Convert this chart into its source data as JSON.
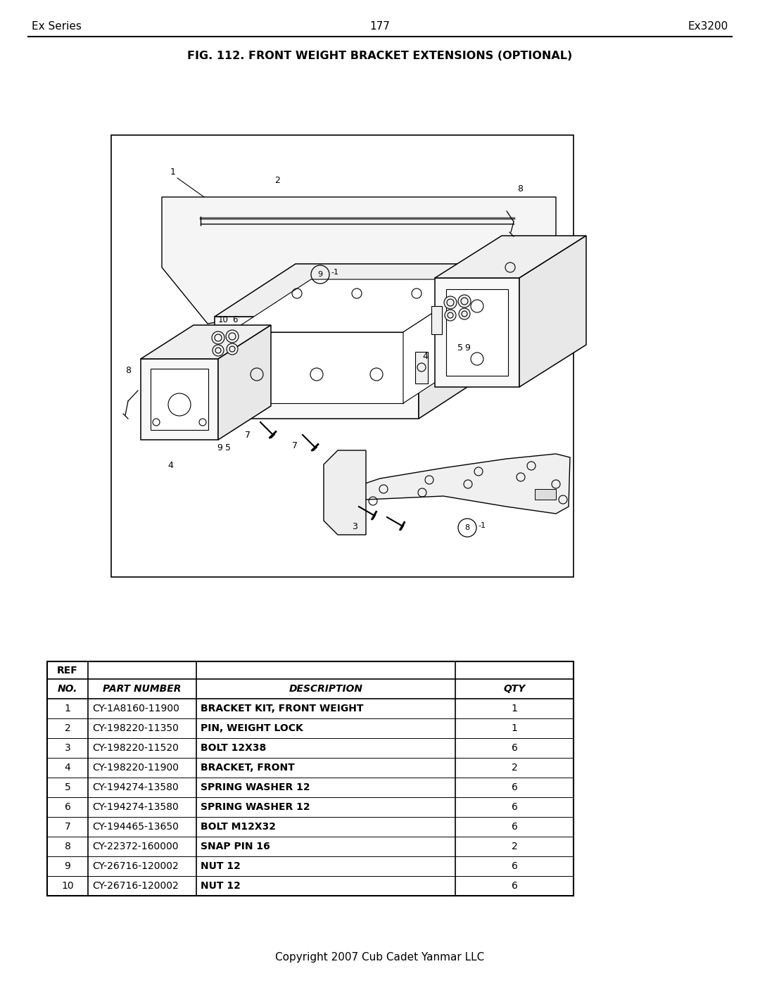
{
  "page_title_left": "Ex Series",
  "page_title_center": "177",
  "page_title_right": "Ex3200",
  "fig_title": "FIG. 112. FRONT WEIGHT BRACKET EXTENSIONS (OPTIONAL)",
  "copyright": "Copyright 2007 Cub Cadet Yanmar LLC",
  "table_rows": [
    [
      "1",
      "CY-1A8160-11900",
      "BRACKET KIT, FRONT WEIGHT",
      "1"
    ],
    [
      "2",
      "CY-198220-11350",
      "PIN, WEIGHT LOCK",
      "1"
    ],
    [
      "3",
      "CY-198220-11520",
      "BOLT 12X38",
      "6"
    ],
    [
      "4",
      "CY-198220-11900",
      "BRACKET, FRONT",
      "2"
    ],
    [
      "5",
      "CY-194274-13580",
      "SPRING WASHER 12",
      "6"
    ],
    [
      "6",
      "CY-194274-13580",
      "SPRING WASHER 12",
      "6"
    ],
    [
      "7",
      "CY-194465-13650",
      "BOLT M12X32",
      "6"
    ],
    [
      "8",
      "CY-22372-160000",
      "SNAP PIN 16",
      "2"
    ],
    [
      "9",
      "CY-26716-120002",
      "NUT 12",
      "6"
    ],
    [
      "10",
      "CY-26716-120002",
      "NUT 12",
      "6"
    ]
  ],
  "bg_color": "#ffffff",
  "text_color": "#000000"
}
